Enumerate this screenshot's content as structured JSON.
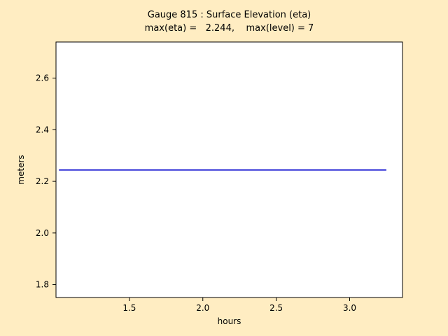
{
  "chart_data": {
    "type": "line",
    "title": "Gauge 815 : Surface Elevation (eta)",
    "subtitle": "max(eta) =   2.244,    max(level) = 7",
    "xlabel": "hours",
    "ylabel": "meters",
    "xlim": [
      1.0,
      3.36
    ],
    "ylim": [
      1.75,
      2.74
    ],
    "xticks": [
      "1.5",
      "2.0",
      "2.5",
      "3.0"
    ],
    "yticks": [
      "1.8",
      "2.0",
      "2.2",
      "2.4",
      "2.6"
    ],
    "grid": false,
    "legend": "none",
    "colors": {
      "figure_background": "#FFEDC2",
      "axes_background": "#FFFFFF",
      "line": "#0000CD",
      "frame": "#000000"
    },
    "series": [
      {
        "name": "eta",
        "color": "#0000CD",
        "x": [
          1.02,
          3.25
        ],
        "y": [
          2.244,
          2.244
        ]
      }
    ]
  }
}
